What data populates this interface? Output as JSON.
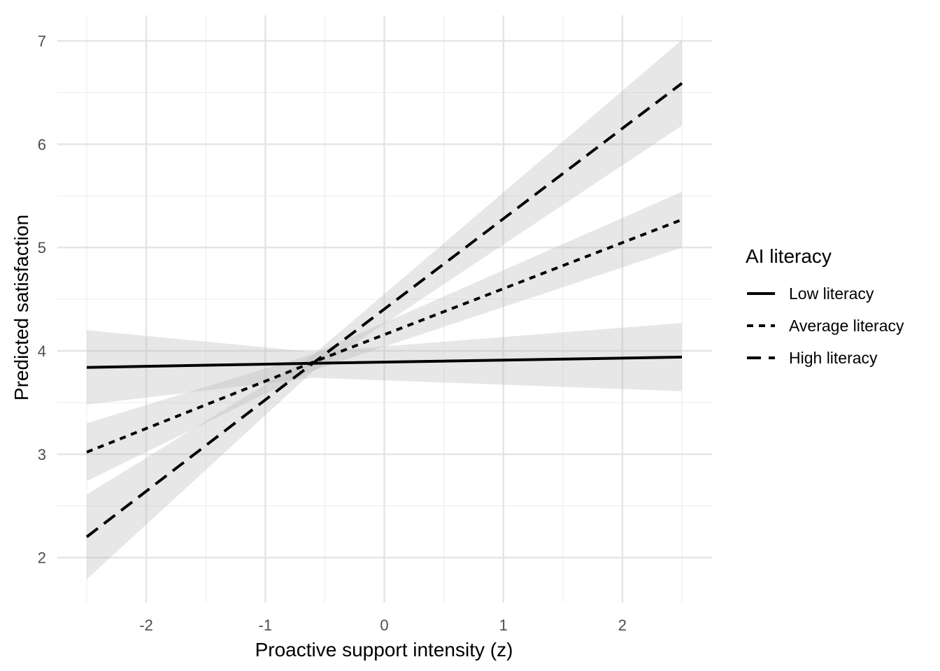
{
  "chart_data": {
    "type": "line",
    "xlabel": "Proactive support intensity (z)",
    "ylabel": "Predicted satisfaction",
    "xlim": [
      -2.5,
      2.5
    ],
    "ylim": [
      2,
      7
    ],
    "x_ticks": [
      -2,
      -1,
      0,
      1,
      2
    ],
    "y_ticks": [
      2,
      3,
      4,
      5,
      6,
      7
    ],
    "grid": true,
    "legend": {
      "title": "AI literacy",
      "placement": "right"
    },
    "band_color": "#bdbdbd",
    "line_color": "#000000",
    "series": [
      {
        "name": "Low literacy",
        "linestyle": "solid",
        "x": [
          -2.5,
          -0.6,
          2.5
        ],
        "y": [
          3.84,
          3.88,
          3.94
        ],
        "lower": [
          3.48,
          3.74,
          3.61
        ],
        "upper": [
          4.2,
          3.99,
          4.27
        ]
      },
      {
        "name": "Average literacy",
        "linestyle": "dotted",
        "x": [
          -2.5,
          -0.6,
          2.5
        ],
        "y": [
          3.02,
          3.89,
          5.27
        ],
        "lower": [
          2.74,
          3.81,
          5.0
        ],
        "upper": [
          3.3,
          3.97,
          5.54
        ]
      },
      {
        "name": "High literacy",
        "linestyle": "dashed",
        "x": [
          -2.5,
          -0.6,
          2.5
        ],
        "y": [
          2.2,
          3.88,
          6.59
        ],
        "lower": [
          1.79,
          3.8,
          6.18
        ],
        "upper": [
          2.61,
          3.96,
          7.01
        ]
      }
    ]
  }
}
